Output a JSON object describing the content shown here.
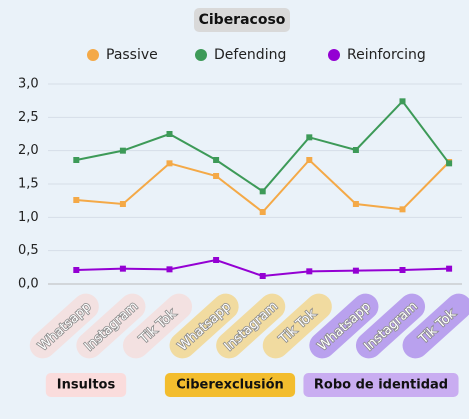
{
  "chart_data": {
    "type": "line",
    "title": "Ciberacoso",
    "groups": [
      {
        "name": "Insultos",
        "color": "#fadcdc",
        "pill_color": "#f3e1e1",
        "categories": [
          "Whatsapp",
          "Instagram",
          "Tik Tok"
        ]
      },
      {
        "name": "Ciberexclusión",
        "color": "#f3bd2e",
        "pill_color": "#f1dba0",
        "categories": [
          "Whatsapp",
          "Instagram",
          "Tik Tok"
        ]
      },
      {
        "name": "Robo de identidad",
        "color": "#c9adf1",
        "pill_color": "#b9a1ee",
        "categories": [
          "Whatsapp",
          "Instagram",
          "Tik Tok"
        ]
      }
    ],
    "series": [
      {
        "name": "Passive",
        "color": "#f4a947",
        "values": [
          1.26,
          1.2,
          1.81,
          1.62,
          1.08,
          1.86,
          1.2,
          1.12,
          1.83
        ]
      },
      {
        "name": "Defending",
        "color": "#3d9a58",
        "values": [
          1.86,
          2.0,
          2.25,
          1.86,
          1.39,
          2.2,
          2.01,
          2.74,
          1.81
        ]
      },
      {
        "name": "Reinforcing",
        "color": "#9400d3",
        "values": [
          0.21,
          0.23,
          0.22,
          0.36,
          0.12,
          0.19,
          0.2,
          0.21,
          0.23
        ]
      }
    ],
    "ylim": [
      0,
      3
    ],
    "yticks": [
      {
        "value": 0,
        "label": "0,0"
      },
      {
        "value": 0.5,
        "label": "0,5"
      },
      {
        "value": 1,
        "label": "1,0"
      },
      {
        "value": 1.5,
        "label": "1,5"
      },
      {
        "value": 2,
        "label": "2,0"
      },
      {
        "value": 2.5,
        "label": "2,5"
      },
      {
        "value": 3,
        "label": "3,0"
      }
    ],
    "grid": true
  }
}
